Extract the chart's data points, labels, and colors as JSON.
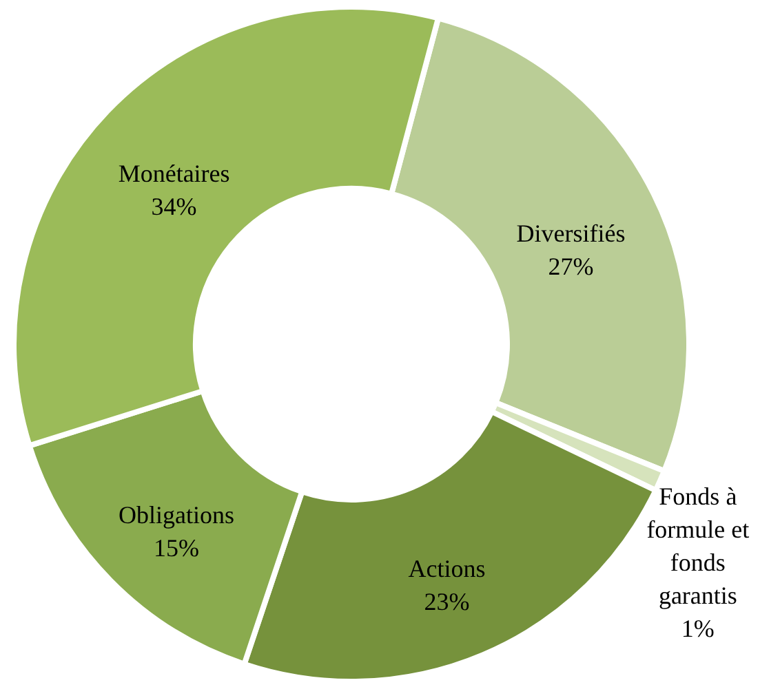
{
  "chart_data": {
    "type": "donut",
    "categories": [
      "Diversifiés",
      "Fonds à formule et fonds garantis",
      "Actions",
      "Obligations",
      "Monétaires"
    ],
    "values": [
      27,
      1,
      23,
      15,
      34
    ],
    "value_labels": [
      "27%",
      "1%",
      "23%",
      "15%",
      "34%"
    ],
    "colors": [
      "#bacd96",
      "#d6e3bc",
      "#76923c",
      "#8aab4e",
      "#9bbb59"
    ]
  }
}
